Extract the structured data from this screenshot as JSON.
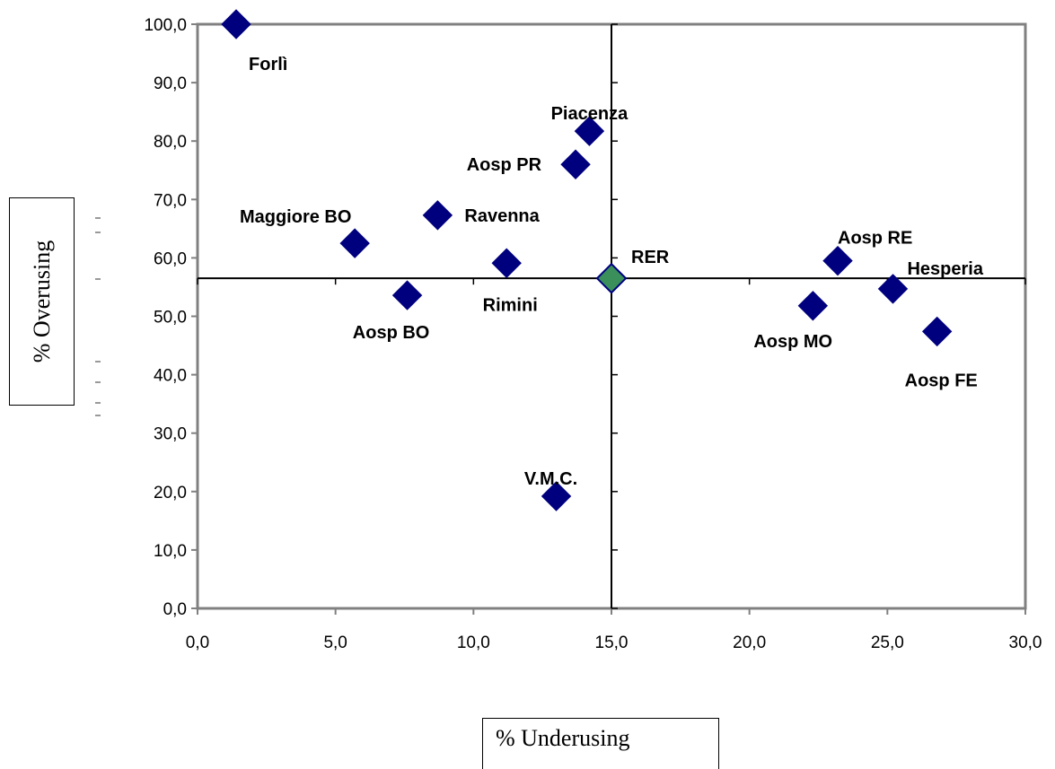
{
  "chart_data": {
    "type": "scatter",
    "xlabel": "% Underusing",
    "ylabel": "% Overusing",
    "xlim": [
      0,
      30
    ],
    "ylim": [
      0,
      100
    ],
    "x_ticks": [
      "0,0",
      "5,0",
      "10,0",
      "15,0",
      "20,0",
      "25,0",
      "30,0"
    ],
    "y_ticks": [
      "0,0",
      "10,0",
      "20,0",
      "30,0",
      "40,0",
      "50,0",
      "60,0",
      "70,0",
      "80,0",
      "90,0",
      "100,0"
    ],
    "reference_lines": {
      "x": 15.0,
      "y": 56.5
    },
    "grid": false,
    "colors": {
      "point": "#00007f",
      "reference_point": "#3a8f5a",
      "axis": "#808080",
      "reference_line": "#000000"
    },
    "points": [
      {
        "label": "Forlì",
        "x": 1.4,
        "y": 100.0
      },
      {
        "label": "Piacenza",
        "x": 14.2,
        "y": 81.7
      },
      {
        "label": "Aosp PR",
        "x": 13.7,
        "y": 76.0
      },
      {
        "label": "Maggiore BO",
        "x": 5.7,
        "y": 62.5
      },
      {
        "label": "Ravenna",
        "x": 8.7,
        "y": 67.3
      },
      {
        "label": "Rimini",
        "x": 11.2,
        "y": 59.1
      },
      {
        "label": "Aosp BO",
        "x": 7.6,
        "y": 53.6
      },
      {
        "label": "V.M.C.",
        "x": 13.0,
        "y": 19.2
      },
      {
        "label": "Aosp RE",
        "x": 23.2,
        "y": 59.5
      },
      {
        "label": "Hesperia",
        "x": 25.2,
        "y": 54.7
      },
      {
        "label": "Aosp MO",
        "x": 22.3,
        "y": 51.8
      },
      {
        "label": "Aosp FE",
        "x": 26.8,
        "y": 47.4
      }
    ],
    "reference_point": {
      "label": "RER",
      "x": 15.0,
      "y": 56.5
    }
  }
}
